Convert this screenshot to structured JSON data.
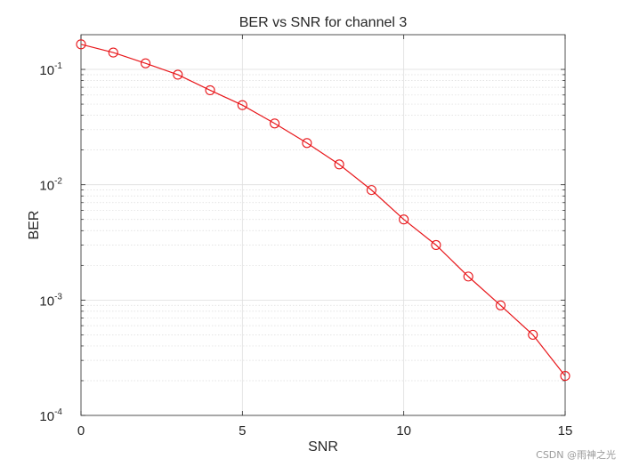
{
  "chart_data": {
    "type": "line",
    "title": "BER vs SNR for channel 3",
    "xlabel": "SNR",
    "ylabel": "BER",
    "xlim": [
      0,
      15
    ],
    "ylim": [
      0.0001,
      0.2
    ],
    "yscale": "log",
    "grid": true,
    "minor_grid": true,
    "x_ticks": [
      0,
      5,
      10,
      15
    ],
    "x_tick_labels": [
      "0",
      "5",
      "10",
      "15"
    ],
    "y_ticks": [
      {
        "value": 0.1,
        "base": "10",
        "exp": "-1"
      },
      {
        "value": 0.01,
        "base": "10",
        "exp": "-2"
      },
      {
        "value": 0.001,
        "base": "10",
        "exp": "-3"
      },
      {
        "value": 0.0001,
        "base": "10",
        "exp": "-4"
      }
    ],
    "series": [
      {
        "color": "#e8171b",
        "marker": "circle",
        "x": [
          0,
          1,
          2,
          3,
          4,
          5,
          6,
          7,
          8,
          9,
          10,
          11,
          12,
          13,
          14,
          15
        ],
        "y": [
          0.165,
          0.14,
          0.113,
          0.09,
          0.066,
          0.049,
          0.034,
          0.023,
          0.015,
          0.009,
          0.005,
          0.003,
          0.0016,
          0.0009,
          0.0005,
          0.00022
        ]
      }
    ]
  },
  "watermark": "CSDN @雨神之光"
}
